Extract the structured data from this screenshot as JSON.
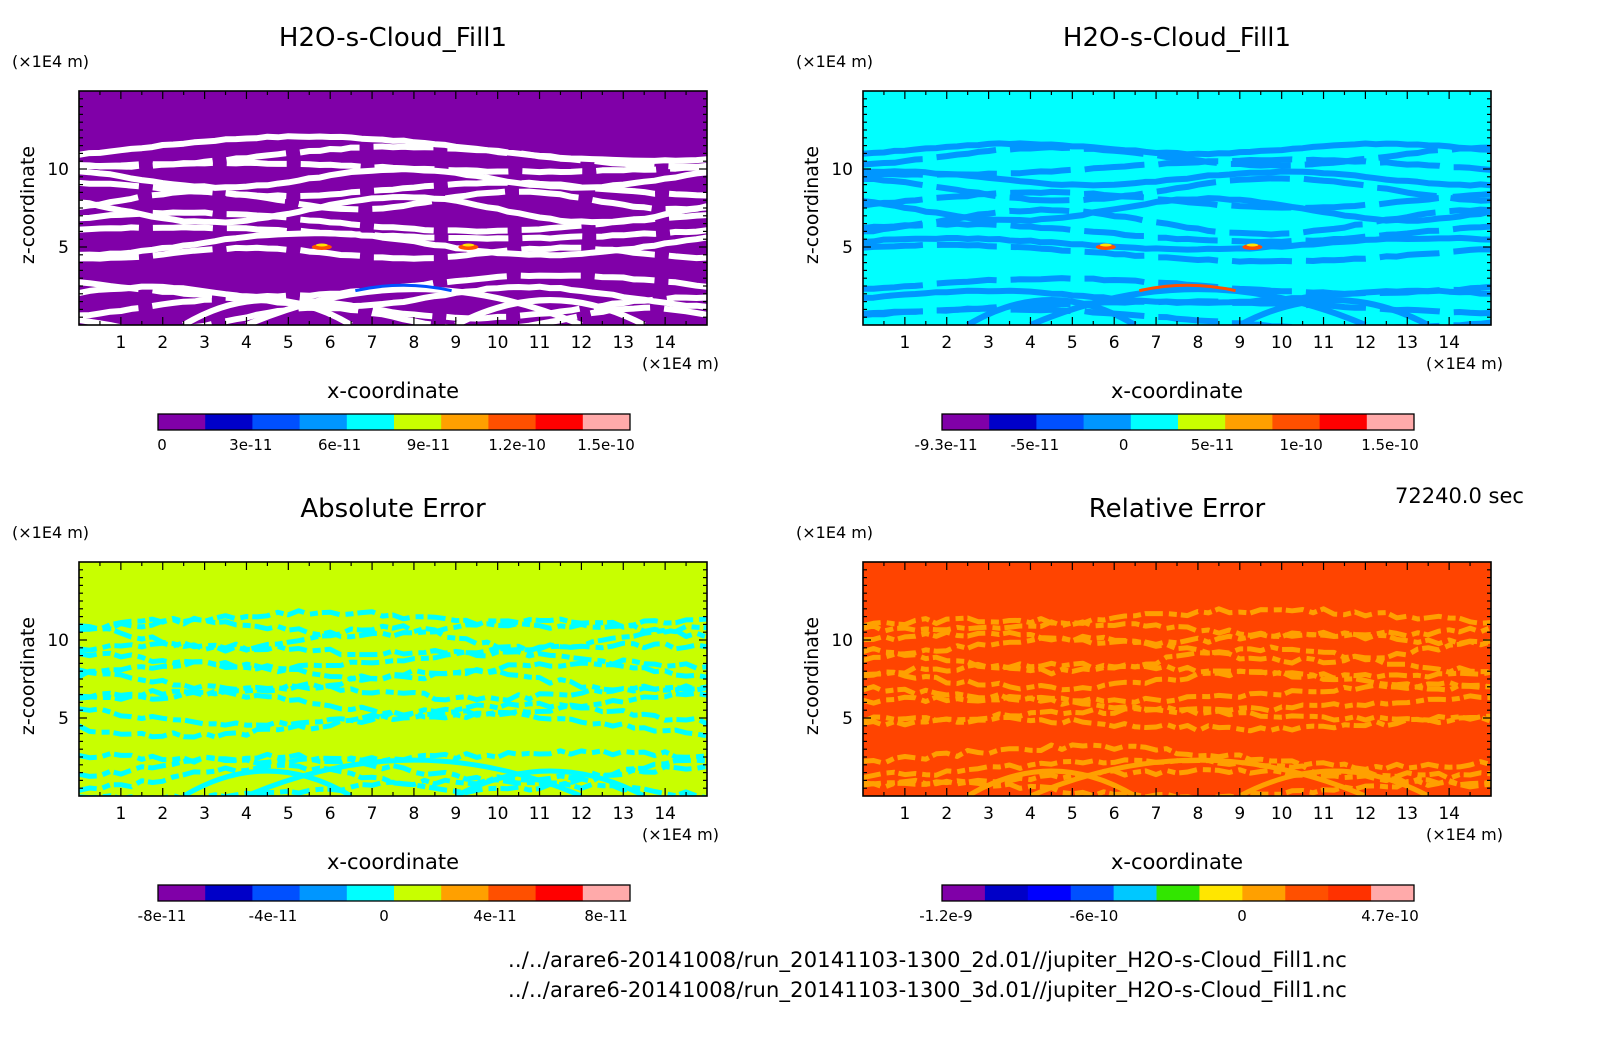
{
  "time_label": "72240.0 sec",
  "files": [
    "../../arare6-20141008/run_20141103-1300_2d.01//jupiter_H2O-s-Cloud_Fill1.nc",
    "../../arare6-20141008/run_20141103-1300_3d.01//jupiter_H2O-s-Cloud_Fill1.nc"
  ],
  "chart_data": [
    {
      "type": "heatmap",
      "title": "H2O-s-Cloud_Fill1",
      "xlabel": "x-coordinate",
      "ylabel": "z-coordinate",
      "x_unit": "(×1E4 m)",
      "y_unit": "(×1E4 m)",
      "xlim": [
        0,
        15
      ],
      "ylim": [
        0,
        15
      ],
      "x_ticks": [
        "1",
        "2",
        "3",
        "4",
        "5",
        "6",
        "7",
        "8",
        "9",
        "10",
        "11",
        "12",
        "13",
        "14"
      ],
      "y_ticks": [
        "5",
        "10"
      ],
      "background_color": "#8000a8",
      "pattern_color": "#ffffff",
      "colorbar": {
        "colors": [
          "#8000a8",
          "#0000c8",
          "#0050ff",
          "#0096ff",
          "#00ffff",
          "#c8ff00",
          "#ffa000",
          "#ff5000",
          "#ff0000",
          "#ffaaaa"
        ],
        "tick_labels": [
          "0",
          "3e-11",
          "6e-11",
          "9e-11",
          "1.2e-10",
          "1.5e-10"
        ]
      }
    },
    {
      "type": "heatmap",
      "title": "H2O-s-Cloud_Fill1",
      "xlabel": "x-coordinate",
      "ylabel": "z-coordinate",
      "x_unit": "(×1E4 m)",
      "y_unit": "(×1E4 m)",
      "xlim": [
        0,
        15
      ],
      "ylim": [
        0,
        15
      ],
      "x_ticks": [
        "1",
        "2",
        "3",
        "4",
        "5",
        "6",
        "7",
        "8",
        "9",
        "10",
        "11",
        "12",
        "13",
        "14"
      ],
      "y_ticks": [
        "5",
        "10"
      ],
      "background_color": "#00ffff",
      "pattern_color": "#0096ff",
      "colorbar": {
        "colors": [
          "#8000a8",
          "#0000c8",
          "#0050ff",
          "#0096ff",
          "#00ffff",
          "#c8ff00",
          "#ffa000",
          "#ff5000",
          "#ff0000",
          "#ffaaaa"
        ],
        "tick_labels": [
          "-9.3e-11",
          "-5e-11",
          "0",
          "5e-11",
          "1e-10",
          "1.5e-10"
        ]
      }
    },
    {
      "type": "heatmap",
      "title": "Absolute Error",
      "xlabel": "x-coordinate",
      "ylabel": "z-coordinate",
      "x_unit": "(×1E4 m)",
      "y_unit": "(×1E4 m)",
      "xlim": [
        0,
        15
      ],
      "ylim": [
        0,
        15
      ],
      "x_ticks": [
        "1",
        "2",
        "3",
        "4",
        "5",
        "6",
        "7",
        "8",
        "9",
        "10",
        "11",
        "12",
        "13",
        "14"
      ],
      "y_ticks": [
        "5",
        "10"
      ],
      "background_color": "#c8ff00",
      "pattern_color": "#00ffff",
      "colorbar": {
        "colors": [
          "#8000a8",
          "#0000c8",
          "#0050ff",
          "#0096ff",
          "#00ffff",
          "#c8ff00",
          "#ffa000",
          "#ff5000",
          "#ff0000",
          "#ffaaaa"
        ],
        "tick_labels": [
          "-8e-11",
          "-4e-11",
          "0",
          "4e-11",
          "8e-11"
        ]
      }
    },
    {
      "type": "heatmap",
      "title": "Relative Error",
      "xlabel": "x-coordinate",
      "ylabel": "z-coordinate",
      "x_unit": "(×1E4 m)",
      "y_unit": "(×1E4 m)",
      "xlim": [
        0,
        15
      ],
      "ylim": [
        0,
        15
      ],
      "x_ticks": [
        "1",
        "2",
        "3",
        "4",
        "5",
        "6",
        "7",
        "8",
        "9",
        "10",
        "11",
        "12",
        "13",
        "14"
      ],
      "y_ticks": [
        "5",
        "10"
      ],
      "background_color": "#ff4400",
      "pattern_color": "#ffa000",
      "colorbar": {
        "colors": [
          "#8000a8",
          "#0000c8",
          "#0000ff",
          "#0050ff",
          "#00c8ff",
          "#32e600",
          "#ffe600",
          "#ffa000",
          "#ff5000",
          "#ff3200",
          "#ffaaaa"
        ],
        "tick_labels": [
          "-1.2e-9",
          "-6e-10",
          "0",
          "4.7e-10"
        ]
      }
    }
  ]
}
